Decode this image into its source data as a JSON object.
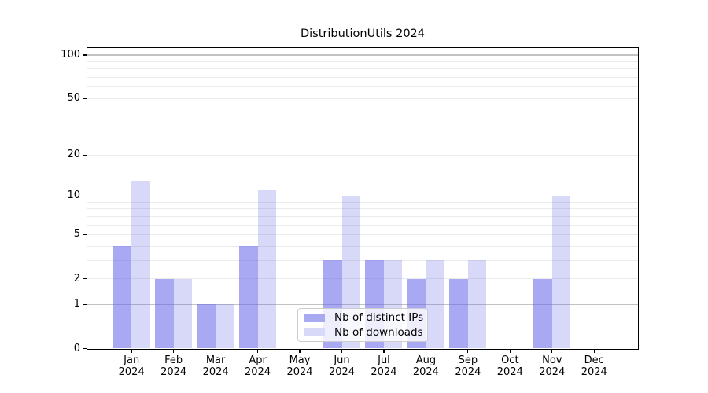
{
  "title": "DistributionUtils 2024",
  "chart_data": {
    "type": "bar",
    "title": "DistributionUtils 2024",
    "categories": [
      "Jan 2024",
      "Feb 2024",
      "Mar 2024",
      "Apr 2024",
      "May 2024",
      "Jun 2024",
      "Jul 2024",
      "Aug 2024",
      "Sep 2024",
      "Oct 2024",
      "Nov 2024",
      "Dec 2024"
    ],
    "series": [
      {
        "name": "Nb of distinct IPs",
        "values": [
          4,
          2,
          1,
          4,
          0,
          3,
          3,
          2,
          2,
          0,
          2,
          0
        ],
        "color": "rgba(99,99,233,0.55)",
        "swatch": "#a9a9f2"
      },
      {
        "name": "Nb of downloads",
        "values": [
          13,
          2,
          1,
          11,
          0,
          10,
          3,
          3,
          3,
          0,
          10,
          0
        ],
        "color": "rgba(99,99,233,0.25)",
        "swatch": "#d8d8f9"
      }
    ],
    "xlabel": "",
    "ylabel": "",
    "yscale": "log1p",
    "ylim": [
      0,
      113
    ],
    "yticks": [
      0,
      1,
      2,
      5,
      10,
      20,
      50,
      100
    ],
    "grid": {
      "major": [
        1,
        10,
        100
      ],
      "minor": [
        2,
        3,
        4,
        5,
        6,
        7,
        8,
        9,
        20,
        30,
        40,
        50,
        60,
        70,
        80,
        90
      ]
    },
    "legend_position": "lower-center",
    "colors": {
      "grid_major": "#c2c2c2",
      "grid_minor": "#ebebeb",
      "spine": "#000000",
      "legend_border": "#cccccc",
      "background": "#ffffff"
    }
  }
}
